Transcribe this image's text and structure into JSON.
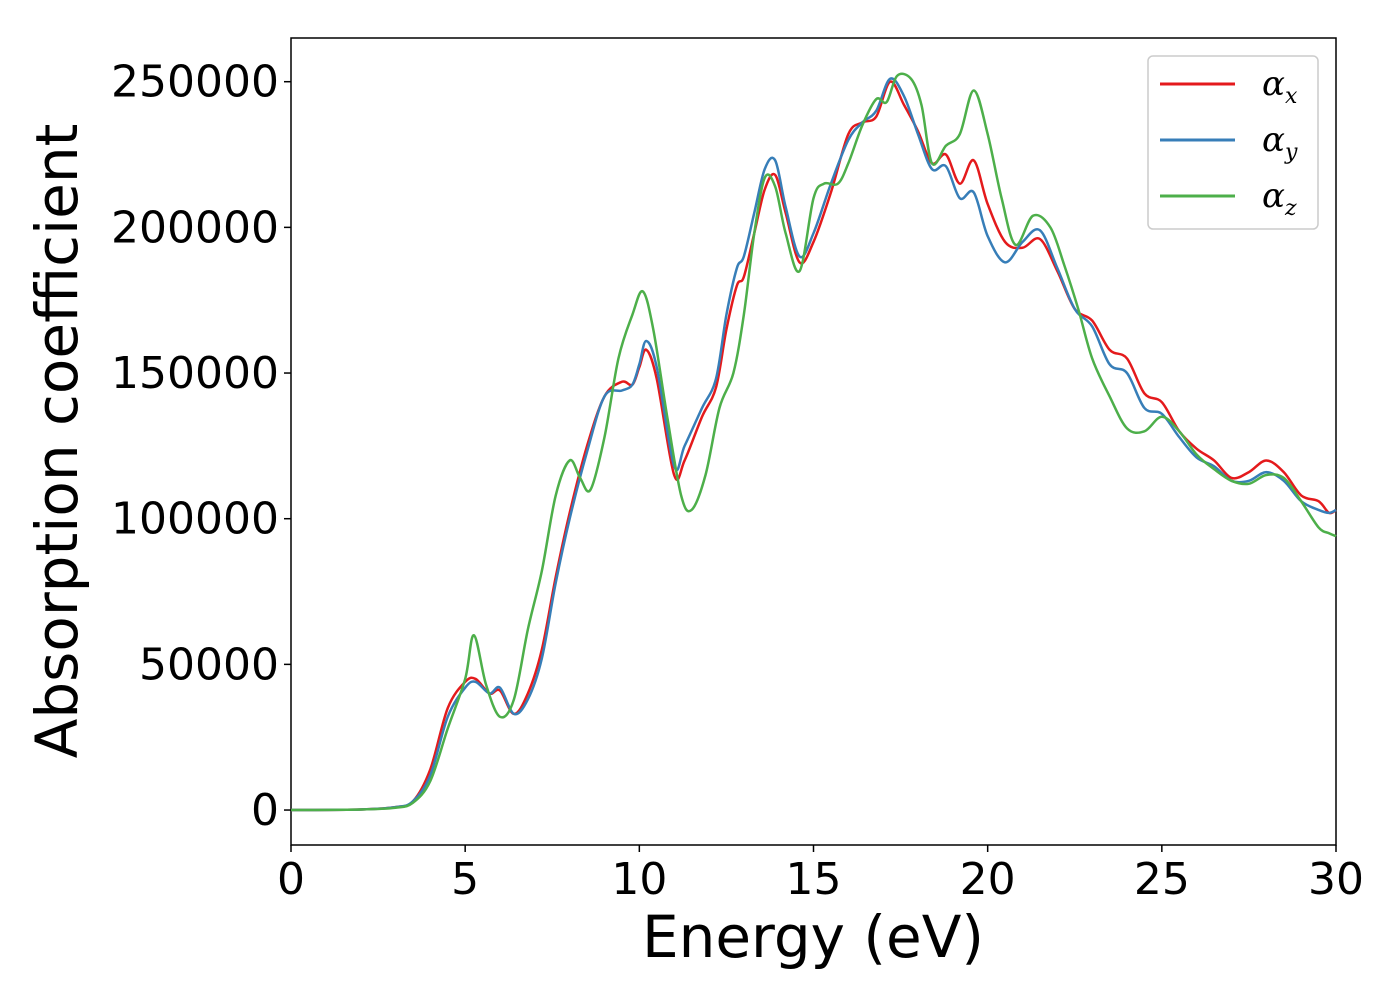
{
  "chart_data": {
    "type": "line",
    "title": "",
    "xlabel": "Energy (eV)",
    "ylabel": "Absorption coefficient",
    "xlim": [
      0,
      30
    ],
    "ylim": [
      -12000,
      265000
    ],
    "xticks": [
      0,
      5,
      10,
      15,
      20,
      25,
      30
    ],
    "xtick_labels": [
      "0",
      "5",
      "10",
      "15",
      "20",
      "25",
      "30"
    ],
    "yticks": [
      0,
      50000,
      100000,
      150000,
      200000,
      250000
    ],
    "ytick_labels": [
      "0",
      "50000",
      "100000",
      "150000",
      "200000",
      "250000"
    ],
    "grid": false,
    "legend_position": "top-right",
    "series": [
      {
        "name": "αx",
        "symbol": "α",
        "subscript": "x",
        "color": "#e41a1c",
        "points": [
          [
            0,
            0
          ],
          [
            2,
            200
          ],
          [
            3,
            1000
          ],
          [
            3.5,
            3000
          ],
          [
            4,
            14000
          ],
          [
            4.5,
            35000
          ],
          [
            5,
            44000
          ],
          [
            5.3,
            45000
          ],
          [
            5.7,
            40000
          ],
          [
            6,
            41000
          ],
          [
            6.4,
            33000
          ],
          [
            6.8,
            40000
          ],
          [
            7.2,
            55000
          ],
          [
            7.6,
            80000
          ],
          [
            8,
            102000
          ],
          [
            8.5,
            125000
          ],
          [
            9,
            142000
          ],
          [
            9.5,
            147000
          ],
          [
            9.8,
            146000
          ],
          [
            10,
            152000
          ],
          [
            10.2,
            158000
          ],
          [
            10.5,
            148000
          ],
          [
            11,
            115000
          ],
          [
            11.3,
            120000
          ],
          [
            11.8,
            135000
          ],
          [
            12.2,
            145000
          ],
          [
            12.5,
            165000
          ],
          [
            12.8,
            180000
          ],
          [
            13,
            183000
          ],
          [
            13.3,
            198000
          ],
          [
            13.6,
            213000
          ],
          [
            13.9,
            218000
          ],
          [
            14.2,
            205000
          ],
          [
            14.6,
            188000
          ],
          [
            15,
            195000
          ],
          [
            15.5,
            212000
          ],
          [
            16,
            232000
          ],
          [
            16.4,
            236000
          ],
          [
            16.8,
            238000
          ],
          [
            17.2,
            250000
          ],
          [
            17.6,
            242000
          ],
          [
            18,
            233000
          ],
          [
            18.4,
            222000
          ],
          [
            18.8,
            225000
          ],
          [
            19.2,
            215000
          ],
          [
            19.6,
            223000
          ],
          [
            20,
            208000
          ],
          [
            20.5,
            195000
          ],
          [
            21,
            193000
          ],
          [
            21.5,
            196000
          ],
          [
            22,
            185000
          ],
          [
            22.5,
            172000
          ],
          [
            23,
            168000
          ],
          [
            23.5,
            158000
          ],
          [
            24,
            155000
          ],
          [
            24.5,
            143000
          ],
          [
            25,
            140000
          ],
          [
            25.5,
            130000
          ],
          [
            26,
            124000
          ],
          [
            26.5,
            120000
          ],
          [
            27,
            114000
          ],
          [
            27.5,
            116000
          ],
          [
            28,
            120000
          ],
          [
            28.5,
            116000
          ],
          [
            29,
            108000
          ],
          [
            29.5,
            106000
          ],
          [
            29.8,
            102000
          ],
          [
            30,
            103000
          ]
        ]
      },
      {
        "name": "αy",
        "symbol": "α",
        "subscript": "y",
        "color": "#377eb8",
        "points": [
          [
            0,
            0
          ],
          [
            2,
            200
          ],
          [
            3,
            1000
          ],
          [
            3.5,
            3000
          ],
          [
            4,
            12000
          ],
          [
            4.5,
            32000
          ],
          [
            5,
            42000
          ],
          [
            5.3,
            44000
          ],
          [
            5.7,
            40000
          ],
          [
            6,
            42000
          ],
          [
            6.4,
            33000
          ],
          [
            6.8,
            38000
          ],
          [
            7.2,
            52000
          ],
          [
            7.6,
            78000
          ],
          [
            8,
            100000
          ],
          [
            8.5,
            123000
          ],
          [
            9,
            142000
          ],
          [
            9.5,
            144000
          ],
          [
            9.8,
            146000
          ],
          [
            10,
            153000
          ],
          [
            10.2,
            161000
          ],
          [
            10.5,
            152000
          ],
          [
            11,
            118000
          ],
          [
            11.3,
            125000
          ],
          [
            11.8,
            138000
          ],
          [
            12.2,
            148000
          ],
          [
            12.5,
            170000
          ],
          [
            12.8,
            186000
          ],
          [
            13,
            190000
          ],
          [
            13.3,
            205000
          ],
          [
            13.6,
            220000
          ],
          [
            13.9,
            223000
          ],
          [
            14.2,
            207000
          ],
          [
            14.6,
            190000
          ],
          [
            15,
            198000
          ],
          [
            15.5,
            215000
          ],
          [
            16,
            230000
          ],
          [
            16.4,
            236000
          ],
          [
            16.8,
            240000
          ],
          [
            17.2,
            251000
          ],
          [
            17.6,
            245000
          ],
          [
            18,
            232000
          ],
          [
            18.4,
            220000
          ],
          [
            18.8,
            221000
          ],
          [
            19.2,
            210000
          ],
          [
            19.6,
            212000
          ],
          [
            20,
            197000
          ],
          [
            20.5,
            188000
          ],
          [
            21,
            195000
          ],
          [
            21.5,
            199000
          ],
          [
            22,
            186000
          ],
          [
            22.5,
            172000
          ],
          [
            23,
            166000
          ],
          [
            23.5,
            153000
          ],
          [
            24,
            150000
          ],
          [
            24.5,
            138000
          ],
          [
            25,
            136000
          ],
          [
            25.5,
            128000
          ],
          [
            26,
            121000
          ],
          [
            26.5,
            118000
          ],
          [
            27,
            113000
          ],
          [
            27.5,
            113000
          ],
          [
            28,
            116000
          ],
          [
            28.5,
            113000
          ],
          [
            29,
            106000
          ],
          [
            29.5,
            103000
          ],
          [
            29.8,
            102000
          ],
          [
            30,
            103000
          ]
        ]
      },
      {
        "name": "αz",
        "symbol": "α",
        "subscript": "z",
        "color": "#4daf4a",
        "points": [
          [
            0,
            0
          ],
          [
            2,
            200
          ],
          [
            3,
            800
          ],
          [
            3.5,
            2500
          ],
          [
            4,
            10000
          ],
          [
            4.5,
            28000
          ],
          [
            5,
            45000
          ],
          [
            5.25,
            60000
          ],
          [
            5.6,
            43000
          ],
          [
            6,
            32000
          ],
          [
            6.4,
            38000
          ],
          [
            6.8,
            62000
          ],
          [
            7.2,
            82000
          ],
          [
            7.6,
            108000
          ],
          [
            8,
            120000
          ],
          [
            8.3,
            114000
          ],
          [
            8.6,
            110000
          ],
          [
            9,
            128000
          ],
          [
            9.4,
            155000
          ],
          [
            9.8,
            170000
          ],
          [
            10.1,
            178000
          ],
          [
            10.4,
            165000
          ],
          [
            10.8,
            135000
          ],
          [
            11.2,
            108000
          ],
          [
            11.5,
            103000
          ],
          [
            11.9,
            115000
          ],
          [
            12.3,
            138000
          ],
          [
            12.7,
            150000
          ],
          [
            13,
            170000
          ],
          [
            13.3,
            198000
          ],
          [
            13.6,
            217000
          ],
          [
            13.9,
            214000
          ],
          [
            14.2,
            198000
          ],
          [
            14.6,
            185000
          ],
          [
            15,
            210000
          ],
          [
            15.3,
            215000
          ],
          [
            15.7,
            215000
          ],
          [
            16,
            222000
          ],
          [
            16.4,
            235000
          ],
          [
            16.8,
            244000
          ],
          [
            17.1,
            243000
          ],
          [
            17.4,
            252000
          ],
          [
            17.8,
            251000
          ],
          [
            18.1,
            242000
          ],
          [
            18.4,
            222000
          ],
          [
            18.8,
            228000
          ],
          [
            19.2,
            232000
          ],
          [
            19.6,
            247000
          ],
          [
            20,
            232000
          ],
          [
            20.4,
            210000
          ],
          [
            20.8,
            194000
          ],
          [
            21.3,
            204000
          ],
          [
            21.8,
            200000
          ],
          [
            22.2,
            187000
          ],
          [
            22.6,
            172000
          ],
          [
            23,
            155000
          ],
          [
            23.5,
            142000
          ],
          [
            24,
            131000
          ],
          [
            24.5,
            130000
          ],
          [
            25,
            135000
          ],
          [
            25.5,
            130000
          ],
          [
            26,
            122000
          ],
          [
            26.5,
            117000
          ],
          [
            27,
            113000
          ],
          [
            27.5,
            112000
          ],
          [
            28,
            115000
          ],
          [
            28.5,
            114000
          ],
          [
            29,
            106000
          ],
          [
            29.5,
            97000
          ],
          [
            29.8,
            95000
          ],
          [
            30,
            94000
          ]
        ]
      }
    ]
  }
}
